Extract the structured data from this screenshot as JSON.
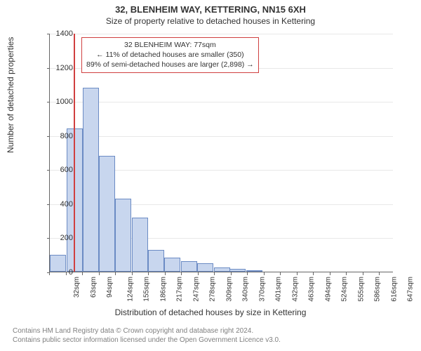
{
  "chart": {
    "type": "histogram",
    "title_main": "32, BLENHEIM WAY, KETTERING, NN15 6XH",
    "title_sub": "Size of property relative to detached houses in Kettering",
    "ylabel": "Number of detached properties",
    "xlabel": "Distribution of detached houses by size in Kettering",
    "title_fontsize": 13,
    "label_fontsize": 12,
    "tick_fontsize": 11,
    "ylim": [
      0,
      1400
    ],
    "ytick_step": 200,
    "yticks": [
      0,
      200,
      400,
      600,
      800,
      1000,
      1200,
      1400
    ],
    "xtick_labels": [
      "32sqm",
      "63sqm",
      "94sqm",
      "124sqm",
      "155sqm",
      "186sqm",
      "217sqm",
      "247sqm",
      "278sqm",
      "309sqm",
      "340sqm",
      "370sqm",
      "401sqm",
      "432sqm",
      "463sqm",
      "494sqm",
      "524sqm",
      "555sqm",
      "586sqm",
      "616sqm",
      "647sqm"
    ],
    "bars": [
      {
        "x": 32,
        "value": 100
      },
      {
        "x": 63,
        "value": 840
      },
      {
        "x": 94,
        "value": 1078
      },
      {
        "x": 124,
        "value": 680
      },
      {
        "x": 155,
        "value": 430
      },
      {
        "x": 186,
        "value": 318
      },
      {
        "x": 217,
        "value": 128
      },
      {
        "x": 247,
        "value": 83
      },
      {
        "x": 278,
        "value": 62
      },
      {
        "x": 309,
        "value": 48
      },
      {
        "x": 340,
        "value": 25
      },
      {
        "x": 370,
        "value": 15
      },
      {
        "x": 401,
        "value": 8
      }
    ],
    "bar_xstep": 31,
    "xlim": [
      32,
      678
    ],
    "bar_fill": "#c8d6ee",
    "bar_stroke": "#6b8bc4",
    "marker_x": 77,
    "marker_color": "#d04040",
    "annotation": {
      "line1": "32 BLENHEIM WAY: 77sqm",
      "line2": "← 11% of detached houses are smaller (350)",
      "line3": "89% of semi-detached houses are larger (2,898) →"
    },
    "background_color": "#ffffff",
    "grid_color": "#e8e8e8",
    "axis_color": "#666666",
    "text_color": "#333333"
  },
  "attribution": {
    "line1": "Contains HM Land Registry data © Crown copyright and database right 2024.",
    "line2": "Contains public sector information licensed under the Open Government Licence v3.0."
  }
}
